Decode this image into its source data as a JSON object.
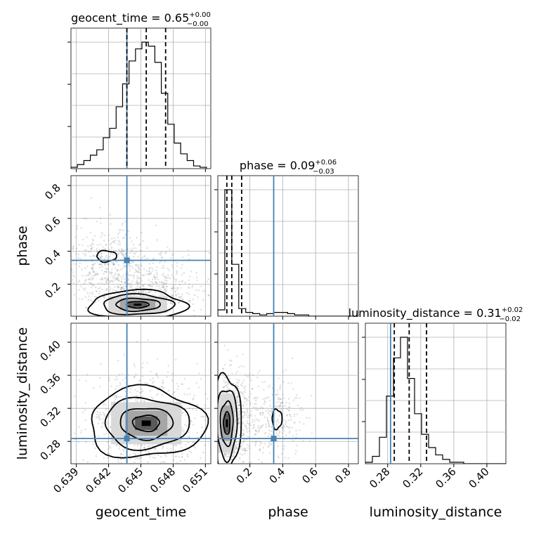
{
  "chart_data": {
    "type": "corner",
    "parameters": [
      {
        "name": "geocent_time",
        "label": "geocent_time",
        "range": [
          0.6385,
          0.6515
        ],
        "ticks": [
          0.639,
          0.642,
          0.645,
          0.648,
          0.651
        ],
        "tick_labels": [
          "0.639",
          "0.642",
          "0.645",
          "0.648",
          "0.651"
        ],
        "title": {
          "main": "geocent_time = 0.65",
          "sup": "+0.00",
          "sub": "−0.00"
        },
        "quantiles": [
          0.6437,
          0.6455,
          0.6473
        ],
        "truth": 0.6437
      },
      {
        "name": "phase",
        "label": "phase",
        "range": [
          0.005,
          0.86
        ],
        "ticks": [
          0.2,
          0.4,
          0.6,
          0.8
        ],
        "tick_labels": [
          "0.2",
          "0.4",
          "0.6",
          "0.8"
        ],
        "title": {
          "main": "phase = 0.09",
          "sup": "+0.06",
          "sub": "−0.03"
        },
        "quantiles": [
          0.06,
          0.09,
          0.15
        ],
        "truth": 0.345
      },
      {
        "name": "luminosity_distance",
        "label": "luminosity_distance",
        "range": [
          0.253,
          0.423
        ],
        "ticks": [
          0.28,
          0.32,
          0.36,
          0.4
        ],
        "tick_labels": [
          "0.28",
          "0.32",
          "0.36",
          "0.40"
        ],
        "title": {
          "main": "luminosity_distance = 0.31",
          "sup": "+0.02",
          "sub": "−0.02"
        },
        "quantiles": [
          0.288,
          0.306,
          0.327
        ],
        "truth": 0.2835
      }
    ],
    "histograms": [
      {
        "param": "geocent_time",
        "bin_edges": [
          0.6385,
          0.6391,
          0.6397,
          0.6403,
          0.6409,
          0.6415,
          0.6421,
          0.6427,
          0.6433,
          0.6439,
          0.6445,
          0.6451,
          0.6457,
          0.6463,
          0.6469,
          0.6475,
          0.6481,
          0.6487,
          0.6493,
          0.6499,
          0.6505,
          0.6511
        ],
        "counts": [
          1,
          3,
          6,
          10,
          14,
          23,
          30,
          46,
          63,
          80,
          89,
          94,
          91,
          79,
          56,
          33,
          19,
          11,
          6,
          2,
          1
        ]
      },
      {
        "param": "phase",
        "bin_edges": [
          0.005,
          0.0475,
          0.09,
          0.1325,
          0.175,
          0.2175,
          0.26,
          0.3025,
          0.345,
          0.3875,
          0.43,
          0.4725,
          0.515,
          0.5575,
          0.6,
          0.6425,
          0.685,
          0.7275,
          0.77,
          0.8125,
          0.855
        ],
        "counts": [
          5,
          100,
          41,
          6,
          3,
          2,
          1,
          2,
          3,
          3,
          2,
          1,
          1,
          0,
          0,
          0,
          0,
          0,
          0,
          0
        ]
      },
      {
        "param": "luminosity_distance",
        "bin_edges": [
          0.253,
          0.2615,
          0.27,
          0.2785,
          0.287,
          0.2955,
          0.304,
          0.3125,
          0.321,
          0.3295,
          0.338,
          0.3465,
          0.355,
          0.3635,
          0.372,
          0.3805,
          0.389,
          0.3975,
          0.406,
          0.4145,
          0.423
        ],
        "counts": [
          1,
          5,
          18,
          46,
          72,
          86,
          58,
          34,
          20,
          11,
          6,
          3,
          1,
          1,
          0,
          0,
          0,
          0,
          0,
          0
        ]
      }
    ],
    "pairs": [
      {
        "x": "geocent_time",
        "y": "phase",
        "density_center": [
          0.6447,
          0.075
        ],
        "secondary_mode": [
          0.6418,
          0.37
        ],
        "truth_point": [
          0.6437,
          0.345
        ]
      },
      {
        "x": "geocent_time",
        "y": "luminosity_distance",
        "density_center": [
          0.6455,
          0.302
        ],
        "truth_point": [
          0.6437,
          0.2835
        ]
      },
      {
        "x": "phase",
        "y": "luminosity_distance",
        "density_center": [
          0.06,
          0.302
        ],
        "secondary_mode": [
          0.365,
          0.307
        ],
        "truth_point": [
          0.345,
          0.2835
        ]
      }
    ],
    "truth_color": "#4682b4",
    "grid": true
  }
}
